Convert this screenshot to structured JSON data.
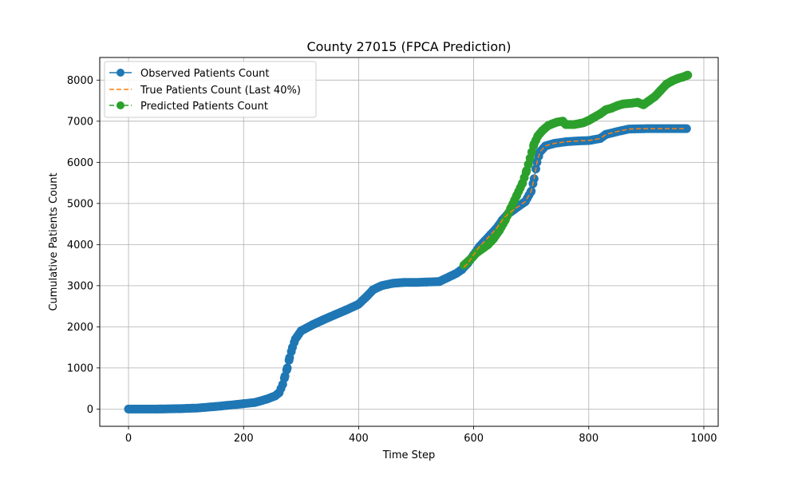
{
  "chart_data": {
    "type": "line",
    "title": "County 27015 (FPCA Prediction)",
    "xlabel": "Time Step",
    "ylabel": "Cumulative Patients Count",
    "xlim": [
      -50,
      1025
    ],
    "ylim": [
      -420,
      8550
    ],
    "xticks": [
      0,
      200,
      400,
      600,
      800,
      1000
    ],
    "xtick_labels": [
      "0",
      "200",
      "400",
      "600",
      "800",
      "1000"
    ],
    "yticks": [
      0,
      1000,
      2000,
      3000,
      4000,
      5000,
      6000,
      7000,
      8000
    ],
    "ytick_labels": [
      "0",
      "1000",
      "2000",
      "3000",
      "4000",
      "5000",
      "6000",
      "7000",
      "8000"
    ],
    "grid": true,
    "legend_position": "top-left",
    "colors": {
      "observed": "#1f77b4",
      "true": "#ff7f0e",
      "predicted": "#2ca02c"
    },
    "series": [
      {
        "name": "Observed Patients Count",
        "style": "solid-marker",
        "points": [
          [
            0,
            0
          ],
          [
            50,
            0
          ],
          [
            90,
            10
          ],
          [
            120,
            25
          ],
          [
            150,
            60
          ],
          [
            180,
            100
          ],
          [
            200,
            130
          ],
          [
            220,
            160
          ],
          [
            240,
            240
          ],
          [
            255,
            320
          ],
          [
            262,
            400
          ],
          [
            268,
            600
          ],
          [
            272,
            800
          ],
          [
            276,
            1000
          ],
          [
            280,
            1250
          ],
          [
            285,
            1500
          ],
          [
            290,
            1700
          ],
          [
            300,
            1900
          ],
          [
            320,
            2050
          ],
          [
            340,
            2180
          ],
          [
            360,
            2300
          ],
          [
            380,
            2420
          ],
          [
            400,
            2550
          ],
          [
            415,
            2750
          ],
          [
            425,
            2900
          ],
          [
            440,
            3000
          ],
          [
            460,
            3060
          ],
          [
            480,
            3080
          ],
          [
            500,
            3080
          ],
          [
            520,
            3090
          ],
          [
            540,
            3100
          ],
          [
            555,
            3200
          ],
          [
            570,
            3300
          ],
          [
            580,
            3400
          ],
          [
            590,
            3550
          ],
          [
            600,
            3750
          ],
          [
            610,
            3950
          ],
          [
            620,
            4100
          ],
          [
            630,
            4250
          ],
          [
            640,
            4400
          ],
          [
            650,
            4600
          ],
          [
            660,
            4750
          ],
          [
            670,
            4850
          ],
          [
            680,
            4950
          ],
          [
            690,
            5050
          ],
          [
            700,
            5300
          ],
          [
            705,
            5600
          ],
          [
            710,
            6000
          ],
          [
            715,
            6250
          ],
          [
            725,
            6400
          ],
          [
            740,
            6460
          ],
          [
            760,
            6500
          ],
          [
            780,
            6520
          ],
          [
            800,
            6530
          ],
          [
            820,
            6580
          ],
          [
            830,
            6680
          ],
          [
            850,
            6750
          ],
          [
            870,
            6810
          ],
          [
            900,
            6820
          ],
          [
            940,
            6820
          ],
          [
            970,
            6820
          ]
        ]
      },
      {
        "name": "True Patients Count (Last 40%)",
        "style": "dashed",
        "points": [
          [
            583,
            3450
          ],
          [
            590,
            3550
          ],
          [
            600,
            3750
          ],
          [
            610,
            3950
          ],
          [
            620,
            4100
          ],
          [
            630,
            4250
          ],
          [
            640,
            4400
          ],
          [
            650,
            4600
          ],
          [
            660,
            4750
          ],
          [
            670,
            4850
          ],
          [
            680,
            4950
          ],
          [
            690,
            5050
          ],
          [
            700,
            5300
          ],
          [
            705,
            5600
          ],
          [
            710,
            6000
          ],
          [
            715,
            6250
          ],
          [
            725,
            6400
          ],
          [
            740,
            6460
          ],
          [
            760,
            6500
          ],
          [
            780,
            6520
          ],
          [
            800,
            6530
          ],
          [
            820,
            6580
          ],
          [
            830,
            6680
          ],
          [
            850,
            6750
          ],
          [
            870,
            6810
          ],
          [
            900,
            6820
          ],
          [
            940,
            6820
          ],
          [
            970,
            6820
          ]
        ]
      },
      {
        "name": "Predicted Patients Count",
        "style": "dashed-marker",
        "points": [
          [
            583,
            3500
          ],
          [
            595,
            3650
          ],
          [
            605,
            3800
          ],
          [
            615,
            3900
          ],
          [
            625,
            4000
          ],
          [
            635,
            4150
          ],
          [
            645,
            4350
          ],
          [
            655,
            4600
          ],
          [
            665,
            4900
          ],
          [
            675,
            5200
          ],
          [
            685,
            5500
          ],
          [
            692,
            5800
          ],
          [
            698,
            6100
          ],
          [
            705,
            6450
          ],
          [
            712,
            6650
          ],
          [
            720,
            6780
          ],
          [
            730,
            6900
          ],
          [
            745,
            6980
          ],
          [
            755,
            7000
          ],
          [
            760,
            6920
          ],
          [
            775,
            6920
          ],
          [
            790,
            6960
          ],
          [
            800,
            7020
          ],
          [
            810,
            7100
          ],
          [
            820,
            7180
          ],
          [
            830,
            7280
          ],
          [
            840,
            7320
          ],
          [
            850,
            7380
          ],
          [
            860,
            7420
          ],
          [
            875,
            7440
          ],
          [
            885,
            7460
          ],
          [
            895,
            7400
          ],
          [
            905,
            7500
          ],
          [
            915,
            7600
          ],
          [
            925,
            7750
          ],
          [
            935,
            7900
          ],
          [
            945,
            7980
          ],
          [
            955,
            8040
          ],
          [
            965,
            8080
          ],
          [
            972,
            8120
          ]
        ]
      }
    ]
  }
}
